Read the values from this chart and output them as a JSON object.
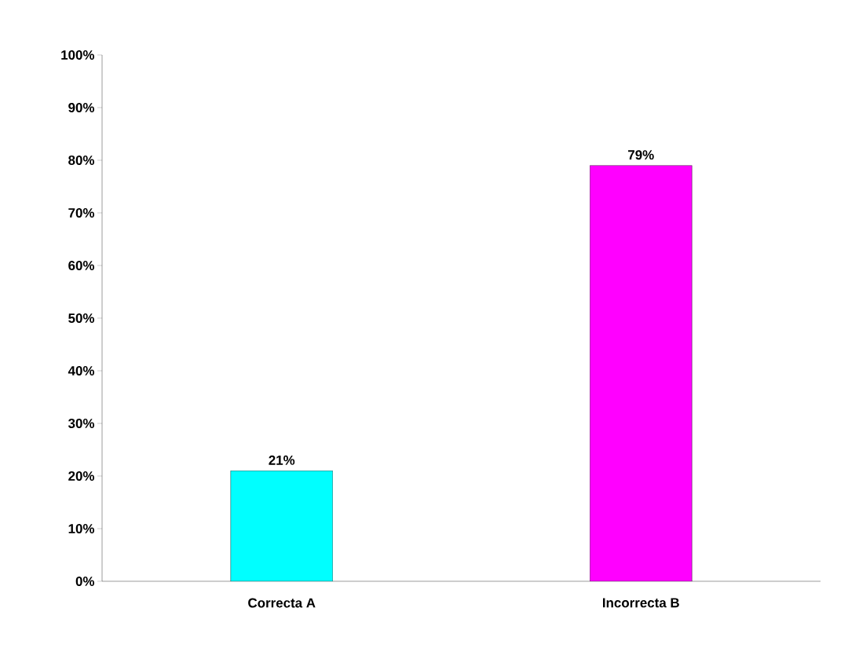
{
  "chart_data": {
    "type": "bar",
    "categories": [
      "Correcta A",
      "Incorrecta B"
    ],
    "values": [
      21,
      79
    ],
    "colors": [
      "#00ffff",
      "#ff00ff"
    ],
    "value_labels": [
      "21%",
      "79%"
    ],
    "ylim": [
      0,
      100
    ],
    "yticks": [
      {
        "value": 0,
        "label": "0%"
      },
      {
        "value": 10,
        "label": "10%"
      },
      {
        "value": 20,
        "label": "20%"
      },
      {
        "value": 30,
        "label": "30%"
      },
      {
        "value": 40,
        "label": "40%"
      },
      {
        "value": 50,
        "label": "50%"
      },
      {
        "value": 60,
        "label": "60%"
      },
      {
        "value": 70,
        "label": "70%"
      },
      {
        "value": 80,
        "label": "80%"
      },
      {
        "value": 90,
        "label": "90%"
      },
      {
        "value": 100,
        "label": "100%"
      }
    ],
    "grid": false
  }
}
